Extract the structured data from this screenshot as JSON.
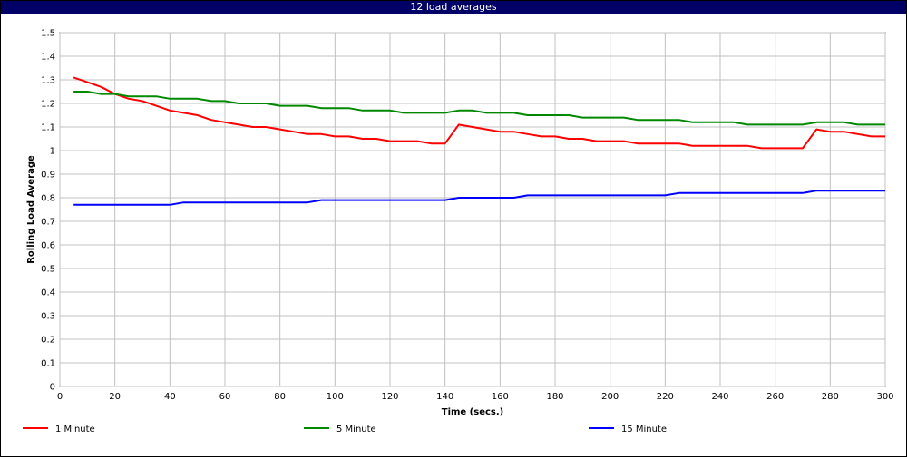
{
  "window": {
    "title": "12 load averages"
  },
  "chart_data": {
    "type": "line",
    "title": "12 load averages",
    "xlabel": "Time (secs.)",
    "ylabel": "Rolling Load Average",
    "xlim": [
      0,
      300
    ],
    "ylim": [
      0,
      1.5
    ],
    "xticks": [
      0,
      20,
      40,
      60,
      80,
      100,
      120,
      140,
      160,
      180,
      200,
      220,
      240,
      260,
      280,
      300
    ],
    "yticks": [
      0,
      0.1,
      0.2,
      0.3,
      0.4,
      0.5,
      0.6,
      0.7,
      0.8,
      0.9,
      1,
      1.1,
      1.2,
      1.3,
      1.4,
      1.5
    ],
    "xtick_labels": [
      "0",
      "20",
      "40",
      "60",
      "80",
      "100",
      "120",
      "140",
      "160",
      "180",
      "200",
      "220",
      "240",
      "260",
      "280",
      "300"
    ],
    "ytick_labels": [
      "0",
      "0.1",
      "0.2",
      "0.3",
      "0.4",
      "0.5",
      "0.6",
      "0.7",
      "0.8",
      "0.9",
      "1",
      "1.1",
      "1.2",
      "1.3",
      "1.4",
      "1.5"
    ],
    "grid": true,
    "legend_position": "bottom",
    "x": [
      5,
      10,
      15,
      20,
      25,
      30,
      35,
      40,
      45,
      50,
      55,
      60,
      65,
      70,
      75,
      80,
      85,
      90,
      95,
      100,
      105,
      110,
      115,
      120,
      125,
      130,
      135,
      140,
      145,
      150,
      155,
      160,
      165,
      170,
      175,
      180,
      185,
      190,
      195,
      200,
      205,
      210,
      215,
      220,
      225,
      230,
      235,
      240,
      245,
      250,
      255,
      260,
      265,
      270,
      275,
      280,
      285,
      290,
      295,
      300
    ],
    "series": [
      {
        "name": "1 Minute",
        "color": "#ff0000",
        "values": [
          1.31,
          1.29,
          1.27,
          1.24,
          1.22,
          1.21,
          1.19,
          1.17,
          1.16,
          1.15,
          1.13,
          1.12,
          1.11,
          1.1,
          1.1,
          1.09,
          1.08,
          1.07,
          1.07,
          1.06,
          1.06,
          1.05,
          1.05,
          1.04,
          1.04,
          1.04,
          1.03,
          1.03,
          1.11,
          1.1,
          1.09,
          1.08,
          1.08,
          1.07,
          1.06,
          1.06,
          1.05,
          1.05,
          1.04,
          1.04,
          1.04,
          1.03,
          1.03,
          1.03,
          1.03,
          1.02,
          1.02,
          1.02,
          1.02,
          1.02,
          1.01,
          1.01,
          1.01,
          1.01,
          1.09,
          1.08,
          1.08,
          1.07,
          1.06,
          1.06
        ]
      },
      {
        "name": "5 Minute",
        "color": "#008800",
        "values": [
          1.25,
          1.25,
          1.24,
          1.24,
          1.23,
          1.23,
          1.23,
          1.22,
          1.22,
          1.22,
          1.21,
          1.21,
          1.2,
          1.2,
          1.2,
          1.19,
          1.19,
          1.19,
          1.18,
          1.18,
          1.18,
          1.17,
          1.17,
          1.17,
          1.16,
          1.16,
          1.16,
          1.16,
          1.17,
          1.17,
          1.16,
          1.16,
          1.16,
          1.15,
          1.15,
          1.15,
          1.15,
          1.14,
          1.14,
          1.14,
          1.14,
          1.13,
          1.13,
          1.13,
          1.13,
          1.12,
          1.12,
          1.12,
          1.12,
          1.11,
          1.11,
          1.11,
          1.11,
          1.11,
          1.12,
          1.12,
          1.12,
          1.11,
          1.11,
          1.11
        ]
      },
      {
        "name": "15 Minute",
        "color": "#0000ff",
        "values": [
          0.77,
          0.77,
          0.77,
          0.77,
          0.77,
          0.77,
          0.77,
          0.77,
          0.78,
          0.78,
          0.78,
          0.78,
          0.78,
          0.78,
          0.78,
          0.78,
          0.78,
          0.78,
          0.79,
          0.79,
          0.79,
          0.79,
          0.79,
          0.79,
          0.79,
          0.79,
          0.79,
          0.79,
          0.8,
          0.8,
          0.8,
          0.8,
          0.8,
          0.81,
          0.81,
          0.81,
          0.81,
          0.81,
          0.81,
          0.81,
          0.81,
          0.81,
          0.81,
          0.81,
          0.82,
          0.82,
          0.82,
          0.82,
          0.82,
          0.82,
          0.82,
          0.82,
          0.82,
          0.82,
          0.83,
          0.83,
          0.83,
          0.83,
          0.83,
          0.83
        ]
      }
    ]
  }
}
